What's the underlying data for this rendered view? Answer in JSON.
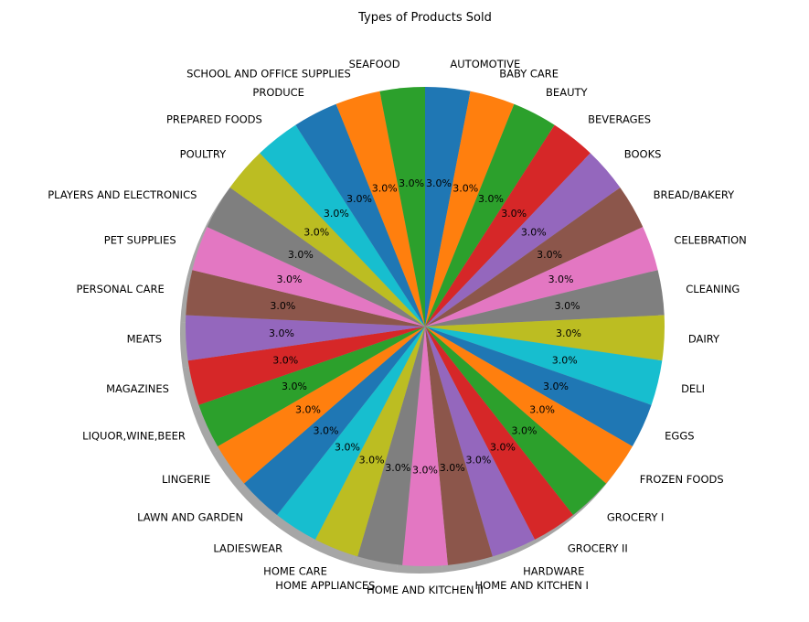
{
  "chart_data": {
    "type": "pie",
    "title": "Types of Products Sold",
    "value_format": "%1.1f%%",
    "shadow": true,
    "start_angle_deg": 90,
    "direction": "clockwise",
    "categories": [
      "AUTOMOTIVE",
      "BABY CARE",
      "BEAUTY",
      "BEVERAGES",
      "BOOKS",
      "BREAD/BAKERY",
      "CELEBRATION",
      "CLEANING",
      "DAIRY",
      "DELI",
      "EGGS",
      "FROZEN FOODS",
      "GROCERY I",
      "GROCERY II",
      "HARDWARE",
      "HOME AND KITCHEN I",
      "HOME AND KITCHEN II",
      "HOME APPLIANCES",
      "HOME CARE",
      "LADIESWEAR",
      "LAWN AND GARDEN",
      "LINGERIE",
      "LIQUOR,WINE,BEER",
      "MAGAZINES",
      "MEATS",
      "PERSONAL CARE",
      "PET SUPPLIES",
      "PLAYERS AND ELECTRONICS",
      "POULTRY",
      "PREPARED FOODS",
      "PRODUCE",
      "SCHOOL AND OFFICE SUPPLIES",
      "SEAFOOD"
    ],
    "values": [
      1,
      1,
      1,
      1,
      1,
      1,
      1,
      1,
      1,
      1,
      1,
      1,
      1,
      1,
      1,
      1,
      1,
      1,
      1,
      1,
      1,
      1,
      1,
      1,
      1,
      1,
      1,
      1,
      1,
      1,
      1,
      1,
      1
    ],
    "colors": [
      "#1f77b4",
      "#ff7f0e",
      "#2ca02c",
      "#d62728",
      "#9467bd",
      "#8c564b",
      "#e377c2",
      "#7f7f7f",
      "#bcbd22",
      "#17becf"
    ]
  }
}
